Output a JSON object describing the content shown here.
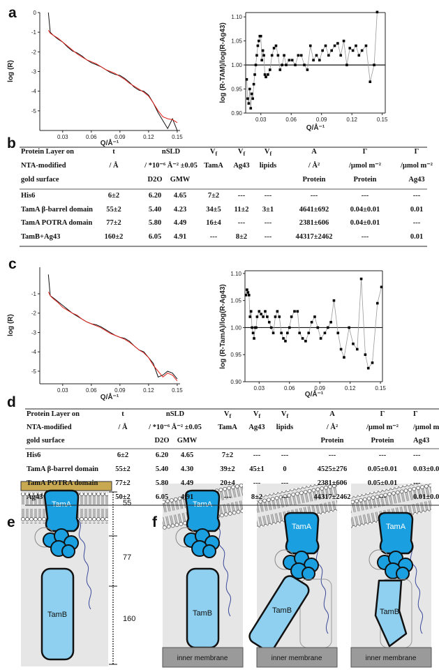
{
  "panels": [
    "a",
    "b",
    "c",
    "d",
    "e",
    "f"
  ],
  "chart_data": [
    {
      "type": "line",
      "x_label": "Q/Å⁻¹",
      "y_label": "log (R)",
      "frame": false,
      "xlim": [
        0.006,
        0.153
      ],
      "ylim": [
        -6,
        0
      ],
      "xticks": [
        0.03,
        0.06,
        0.09,
        0.12,
        0.15
      ],
      "yticks": [
        0,
        -1,
        -2,
        -3,
        -4,
        -5
      ],
      "x": [
        0.015,
        0.017,
        0.02,
        0.025,
        0.03,
        0.035,
        0.04,
        0.045,
        0.05,
        0.055,
        0.06,
        0.065,
        0.07,
        0.075,
        0.08,
        0.085,
        0.09,
        0.095,
        0.1,
        0.105,
        0.11,
        0.115,
        0.12,
        0.125,
        0.13,
        0.135,
        0.14,
        0.145,
        0.15
      ],
      "series": [
        {
          "color": "#111111",
          "values": [
            0,
            -1.0,
            -1.15,
            -1.35,
            -1.5,
            -1.75,
            -1.95,
            -2.05,
            -2.2,
            -2.4,
            -2.55,
            -2.65,
            -2.75,
            -2.9,
            -3.05,
            -3.15,
            -3.2,
            -3.35,
            -3.55,
            -3.8,
            -3.95,
            -4.0,
            -4.2,
            -4.6,
            -5.1,
            -5.5,
            -5.9,
            -5.4,
            -6.0
          ]
        },
        {
          "color": "#e0201b",
          "values": [
            -0.9,
            -1.05,
            -1.15,
            -1.3,
            -1.5,
            -1.7,
            -1.9,
            -2.1,
            -2.25,
            -2.4,
            -2.5,
            -2.6,
            -2.75,
            -2.9,
            -3.0,
            -3.1,
            -3.25,
            -3.4,
            -3.6,
            -3.75,
            -3.9,
            -4.05,
            -4.25,
            -4.6,
            -5.0,
            -5.3,
            -5.4,
            -5.45,
            -5.6
          ]
        }
      ]
    },
    {
      "type": "scatter",
      "x_label": "Q/Å⁻¹",
      "y_label": "log (R-TAM)/log(R-Ag43)",
      "frame": true,
      "connect": true,
      "connect_color": "#9a9a9a",
      "hline": 1,
      "xlim": [
        0.015,
        0.153
      ],
      "ylim": [
        0.9,
        1.109
      ],
      "xticks": [
        0.03,
        0.06,
        0.09,
        0.12,
        0.15
      ],
      "yticks": [
        {
          "value": 0.9,
          "label": "0.90"
        },
        0.95,
        {
          "value": 1,
          "label": "1.00"
        },
        1.05,
        {
          "value": 1.1,
          "label": "1.10"
        }
      ],
      "x": [
        0.016,
        0.017,
        0.018,
        0.019,
        0.02,
        0.021,
        0.022,
        0.023,
        0.024,
        0.025,
        0.026,
        0.027,
        0.028,
        0.029,
        0.03,
        0.031,
        0.032,
        0.033,
        0.034,
        0.035,
        0.037,
        0.039,
        0.041,
        0.043,
        0.045,
        0.047,
        0.049,
        0.051,
        0.053,
        0.055,
        0.058,
        0.061,
        0.064,
        0.067,
        0.07,
        0.073,
        0.076,
        0.079,
        0.082,
        0.085,
        0.088,
        0.091,
        0.094,
        0.097,
        0.1,
        0.103,
        0.106,
        0.109,
        0.112,
        0.115,
        0.118,
        0.121,
        0.124,
        0.127,
        0.13,
        0.134,
        0.138,
        0.142,
        0.145
      ],
      "series": [
        {
          "color": "#000000",
          "values": [
            0.97,
            0.93,
            0.92,
            0.95,
            0.91,
            0.94,
            0.93,
            0.96,
            0.98,
            1.0,
            1.02,
            1.04,
            1.05,
            1.06,
            1.06,
            1.01,
            1.03,
            1.02,
            0.98,
            0.975,
            0.98,
            0.99,
            1.02,
            1.035,
            1.04,
            1.02,
            0.99,
            1.0,
            1.02,
            1.0,
            1.01,
            1.01,
            1.0,
            1.02,
            1.02,
            1.0,
            0.99,
            1.04,
            1.01,
            1.02,
            1.01,
            1.03,
            1.04,
            1.02,
            1.03,
            1.04,
            1.045,
            1.02,
            1.05,
            1.0,
            1.035,
            1.03,
            1.04,
            1.02,
            1.03,
            1.04,
            0.965,
            1.0,
            1.11
          ]
        }
      ]
    },
    {
      "type": "line",
      "x_label": "Q/Å⁻¹",
      "y_label": "log (R)",
      "frame": false,
      "xlim": [
        0.006,
        0.153
      ],
      "ylim": [
        -5.65,
        0.37
      ],
      "xticks": [
        0.03,
        0.06,
        0.09,
        0.12,
        0.15
      ],
      "yticks": [
        -1,
        -2,
        -3,
        -4,
        -5
      ],
      "x": [
        0.015,
        0.017,
        0.02,
        0.025,
        0.03,
        0.035,
        0.04,
        0.045,
        0.05,
        0.055,
        0.06,
        0.065,
        0.07,
        0.075,
        0.08,
        0.085,
        0.09,
        0.095,
        0.1,
        0.105,
        0.11,
        0.115,
        0.12,
        0.125,
        0.13,
        0.135,
        0.14,
        0.145,
        0.15
      ],
      "series": [
        {
          "color": "#111111",
          "values": [
            0,
            -1.1,
            -1.2,
            -1.4,
            -1.6,
            -1.8,
            -2.0,
            -2.15,
            -2.3,
            -2.45,
            -2.55,
            -2.6,
            -2.7,
            -2.85,
            -3.0,
            -3.15,
            -3.25,
            -3.3,
            -3.45,
            -3.7,
            -3.9,
            -4.0,
            -4.3,
            -4.6,
            -5.3,
            -5.2,
            -5.0,
            -5.1,
            -5.4
          ]
        },
        {
          "color": "#e0201b",
          "values": [
            -0.9,
            -1.1,
            -1.25,
            -1.45,
            -1.7,
            -1.85,
            -2.0,
            -2.1,
            -2.3,
            -2.45,
            -2.55,
            -2.65,
            -2.75,
            -2.9,
            -3.05,
            -3.15,
            -3.25,
            -3.35,
            -3.5,
            -3.7,
            -3.9,
            -4.05,
            -4.3,
            -4.7,
            -5.0,
            -5.3,
            -5.1,
            -5.2,
            -5.5
          ]
        }
      ]
    },
    {
      "type": "scatter",
      "x_label": "Q/Å⁻¹",
      "y_label": "log (R-TamA)/log(R-Ag43)",
      "frame": true,
      "connect": true,
      "connect_color": "#9a9a9a",
      "hline": 1,
      "xlim": [
        0.016,
        0.152
      ],
      "ylim": [
        0.9,
        1.105
      ],
      "xticks": [
        0.03,
        0.06,
        0.09,
        0.12,
        0.15
      ],
      "yticks": [
        {
          "value": 0.9,
          "label": "0.90"
        },
        0.95,
        {
          "value": 1,
          "label": "1.00"
        },
        1.05,
        {
          "value": 1.1,
          "label": "1.10"
        }
      ],
      "x": [
        0.017,
        0.018,
        0.019,
        0.02,
        0.021,
        0.022,
        0.023,
        0.024,
        0.025,
        0.026,
        0.027,
        0.028,
        0.03,
        0.032,
        0.034,
        0.036,
        0.038,
        0.04,
        0.042,
        0.044,
        0.046,
        0.048,
        0.05,
        0.052,
        0.054,
        0.056,
        0.058,
        0.06,
        0.062,
        0.065,
        0.068,
        0.07,
        0.073,
        0.076,
        0.079,
        0.082,
        0.085,
        0.088,
        0.091,
        0.095,
        0.098,
        0.101,
        0.104,
        0.108,
        0.111,
        0.114,
        0.119,
        0.123,
        0.127,
        0.131,
        0.135,
        0.138,
        0.142,
        0.147,
        0.151
      ],
      "series": [
        {
          "color": "#000000",
          "values": [
            1.06,
            1.07,
            1.065,
            1.06,
            1.02,
            1.03,
            1.0,
            0.99,
            0.98,
            1.0,
            1.0,
            1.02,
            1.03,
            1.025,
            1.02,
            1.03,
            1.02,
            1.01,
            1.0,
            0.99,
            1.02,
            1.03,
            1.02,
            0.99,
            0.98,
            0.975,
            0.99,
            1.0,
            1.02,
            1.03,
            1.03,
            0.99,
            0.98,
            0.975,
            0.99,
            1.01,
            1.02,
            1.0,
            0.98,
            0.99,
            1.0,
            1.01,
            1.05,
            0.99,
            0.96,
            0.945,
            1.0,
            0.97,
            0.96,
            1.09,
            0.95,
            0.925,
            0.935,
            1.045,
            1.075
          ]
        }
      ]
    }
  ],
  "tables": [
    {
      "header": [
        [
          "Protein Layer on",
          "t",
          "nSLD",
          {
            "text": "V",
            "sub": "f"
          },
          {
            "text": "V",
            "sub": "f"
          },
          {
            "text": "V",
            "sub": "f"
          },
          "A",
          "Γ",
          "Γ"
        ],
        [
          "NTA-modified",
          "/ Å",
          "/ *10⁻⁶ Å⁻² ±0.05",
          "TamA",
          "Ag43",
          "lipids",
          "/ Å²",
          "/µmol m⁻²",
          "/µmol m⁻²"
        ],
        [
          "gold surface",
          "D2O",
          "GMW",
          "Protein",
          "Protein",
          "Ag43"
        ]
      ],
      "rows": [
        [
          "His6",
          "6±2",
          "6.20",
          "4.65",
          "7±2",
          "---",
          "---",
          "---",
          "---",
          "---"
        ],
        [
          "TamA β-barrel domain",
          "55±2",
          "5.40",
          "4.23",
          "34±5",
          "11±2",
          "3±1",
          "4641±692",
          "0.04±0.01",
          "0.01"
        ],
        [
          "TamA POTRA domain",
          "77±2",
          "5.80",
          "4.49",
          "16±4",
          "---",
          "---",
          "2381±606",
          "0.04±0.01",
          "---"
        ],
        [
          "TamB+Ag43",
          "160±2",
          "6.05",
          "4.91",
          "---",
          "8±2",
          "---",
          "44317±2462",
          "---",
          "0.01"
        ]
      ]
    },
    {
      "header": [
        [
          "Protein Layer on",
          "t",
          "nSLD",
          {
            "text": "V",
            "sub": "f"
          },
          {
            "text": "V",
            "sub": "f"
          },
          {
            "text": "V",
            "sub": "f"
          },
          "A",
          "Γ",
          "Γ"
        ],
        [
          "NTA-modified",
          "/ Å",
          "/ *10⁻⁶ Å⁻² ±0.05",
          "TamA",
          "Ag43",
          "lipids",
          "/ Å²",
          "/µmol m⁻²",
          "/µmol m"
        ],
        [
          "gold surface",
          "D2O",
          "GMW",
          "Protein",
          "Protein",
          "Ag43"
        ]
      ],
      "rows": [
        [
          "His6",
          "6±2",
          "6.20",
          "4.65",
          "7±2",
          "---",
          "---",
          "---",
          "---",
          "---"
        ],
        [
          "TamA β-barrel domain",
          "55±2",
          "5.40",
          "4.30",
          "39±2",
          "45±1",
          "0",
          "4525±276",
          "0.05±0.01",
          "0.03±0.0"
        ],
        [
          "TamA POTRA domain",
          "77±2",
          "5.80",
          "4.49",
          "20±4",
          "---",
          "---",
          "2381±606",
          "0.05±0.01",
          "---"
        ],
        [
          "Ag43",
          "50±2",
          "6.05",
          "4.91",
          "---",
          "8±2",
          "---",
          "44317±2462",
          "---",
          "0.01±0.0"
        ]
      ]
    }
  ],
  "diagram_e": {
    "tamA": "TamA",
    "tamB": "TamB",
    "distances": [
      55,
      77,
      160
    ]
  },
  "diagram_f": {
    "states": [
      {
        "tamA": "TamA",
        "tamB": "TamB",
        "membrane": "inner membrane"
      },
      {
        "tamA": "TamA",
        "tamB": "TamB",
        "membrane": "inner membrane"
      },
      {
        "tamA": "TamA",
        "tamB": "TamB",
        "membrane": "inner membrane"
      }
    ]
  }
}
